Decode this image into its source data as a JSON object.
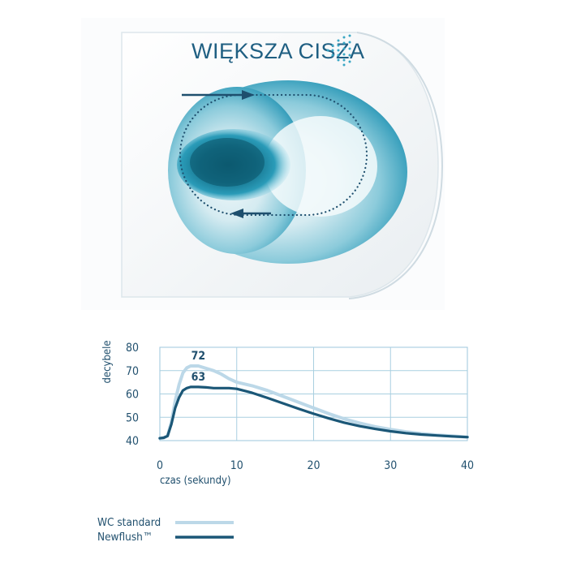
{
  "headline": "WIĘKSZA CISZA",
  "chart_data": {
    "type": "line",
    "title": "",
    "xlabel": "czas (sekundy)",
    "ylabel": "decybele",
    "xlim": [
      0,
      40
    ],
    "ylim": [
      40,
      80
    ],
    "xticks": [
      0,
      10,
      20,
      30,
      40
    ],
    "yticks": [
      40,
      50,
      60,
      70,
      80
    ],
    "grid": true,
    "legend_position": "bottom-left",
    "series": [
      {
        "name": "WC standard",
        "color": "#bcd8e8",
        "x": [
          0,
          0.5,
          1,
          1.5,
          2,
          2.5,
          3,
          3.5,
          4,
          5,
          6,
          7,
          8,
          9,
          10,
          12,
          14,
          16,
          18,
          20,
          22,
          24,
          26,
          28,
          30,
          32,
          34,
          36,
          38,
          40
        ],
        "y": [
          41,
          41.2,
          42,
          48,
          57,
          64,
          69,
          71.2,
          72,
          72,
          71,
          70,
          68.5,
          66.5,
          65,
          63.5,
          61.5,
          59,
          56.5,
          54,
          51.5,
          49.3,
          47.5,
          46,
          44.8,
          43.8,
          43,
          42.4,
          42,
          41.5
        ]
      },
      {
        "name": "Newflush™",
        "color": "#1b5777",
        "x": [
          0,
          0.5,
          1,
          1.5,
          2,
          2.5,
          3,
          3.5,
          4,
          5,
          6,
          7,
          8,
          9,
          10,
          12,
          14,
          16,
          18,
          20,
          22,
          24,
          26,
          28,
          30,
          32,
          34,
          36,
          38,
          40
        ],
        "y": [
          41,
          41.2,
          42,
          47,
          54,
          58.5,
          61.5,
          62.5,
          63,
          63,
          62.8,
          62.5,
          62.5,
          62.5,
          62.2,
          60.5,
          58.3,
          56,
          53.7,
          51.5,
          49.5,
          47.7,
          46.2,
          45,
          44,
          43.2,
          42.6,
          42.2,
          41.8,
          41.5
        ]
      }
    ],
    "annotations": [
      {
        "text": "72",
        "x": 5,
        "y": 72
      },
      {
        "text": "63",
        "x": 5,
        "y": 63
      }
    ]
  }
}
